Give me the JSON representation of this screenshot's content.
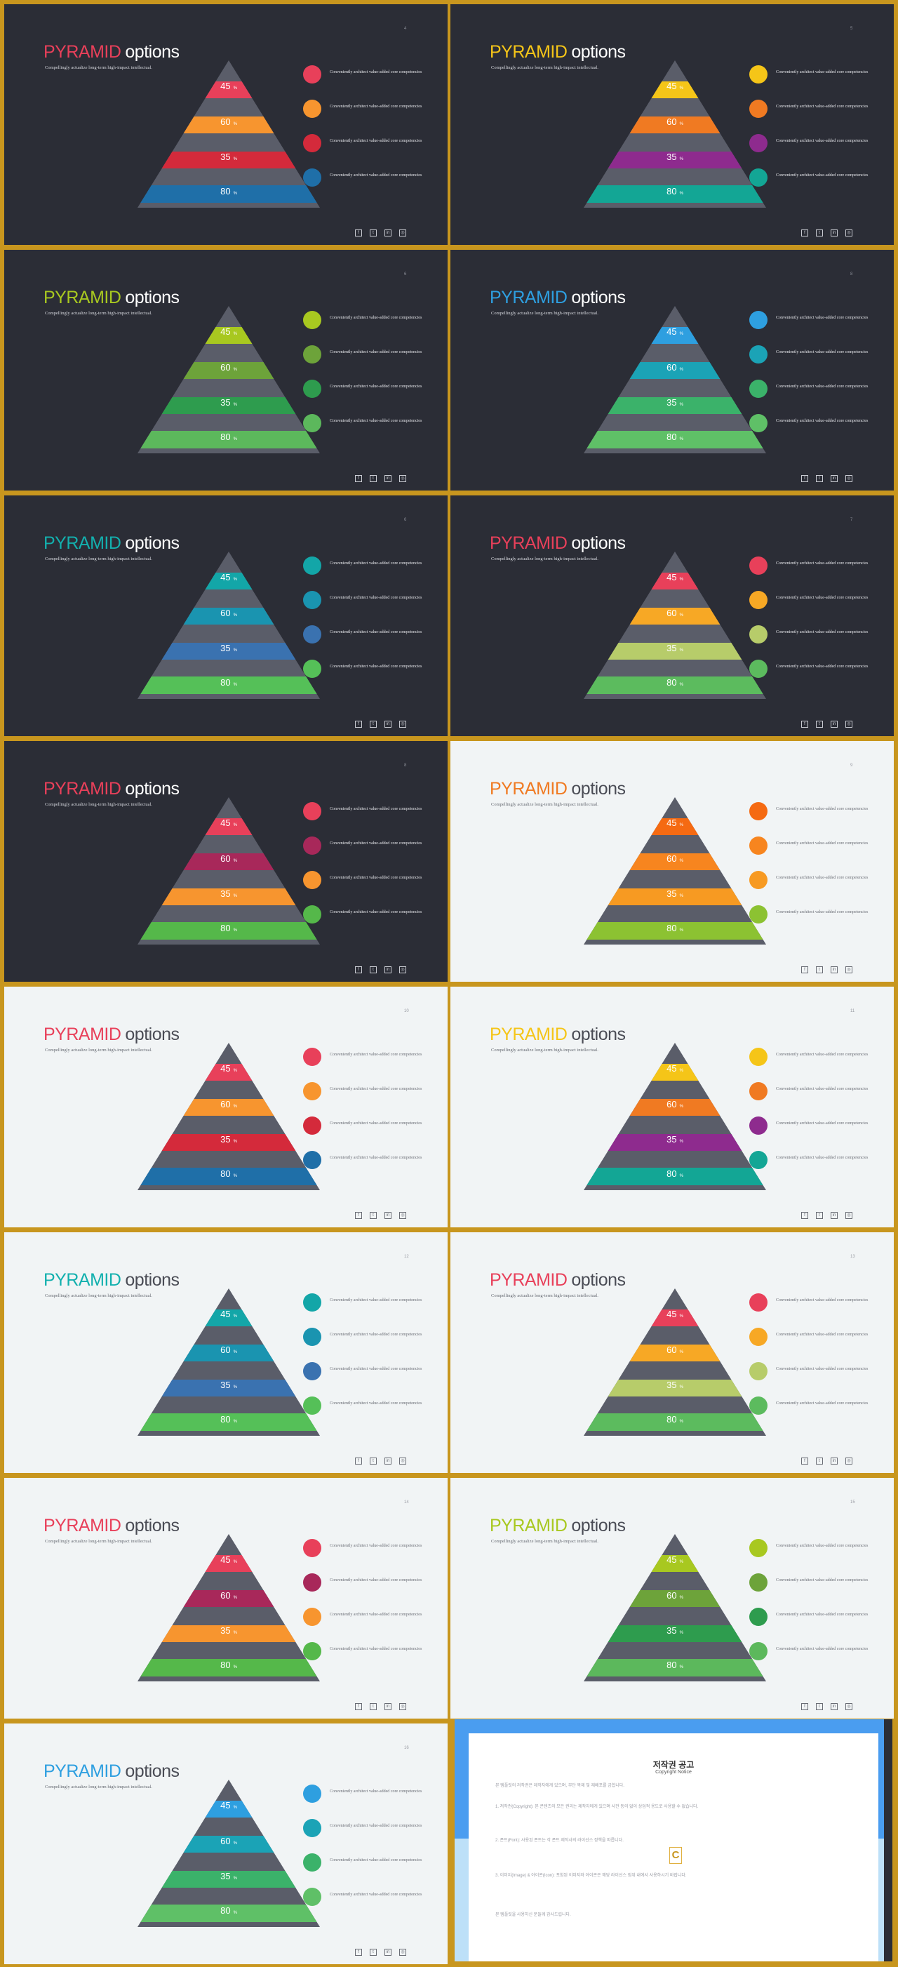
{
  "common": {
    "title_word1": "PYRAMID",
    "title_word2": "options",
    "subtitle": "Compellingly actualize long-term high-impact intellectual.",
    "legend_text": "Conveniently architect value-added core competencies",
    "values": [
      "45",
      "60",
      "35",
      "80"
    ],
    "value_suffix": "%",
    "social": [
      "f",
      "t",
      "in",
      "◎"
    ]
  },
  "slides": [
    {
      "theme": "dark",
      "page": "4",
      "title_color": "#e8405a",
      "values": [
        "45",
        "60",
        "35",
        "80"
      ],
      "colors": [
        "#e8405a",
        "#f7952f",
        "#d42a3b",
        "#1f6fa8"
      ]
    },
    {
      "theme": "dark",
      "page": "5",
      "title_color": "#f5c518",
      "values": [
        "45",
        "60",
        "35",
        "80"
      ],
      "colors": [
        "#f5c518",
        "#f07a22",
        "#8e2b8e",
        "#13a695"
      ]
    },
    {
      "theme": "dark",
      "page": "6",
      "title_color": "#a8c820",
      "values": [
        "45",
        "60",
        "35",
        "80"
      ],
      "colors": [
        "#a8c820",
        "#6da33a",
        "#2e9c4e",
        "#5cb85c"
      ]
    },
    {
      "theme": "dark",
      "page": "8",
      "title_color": "#2e9fe0",
      "values": [
        "45",
        "60",
        "35",
        "80"
      ],
      "colors": [
        "#2e9fe0",
        "#1ba3b6",
        "#3bb26a",
        "#5fc067"
      ]
    },
    {
      "theme": "dark",
      "page": "6",
      "title_color": "#13b0ae",
      "values": [
        "45",
        "60",
        "35",
        "80"
      ],
      "colors": [
        "#13a6a8",
        "#1a94b0",
        "#3a72b0",
        "#55c058"
      ]
    },
    {
      "theme": "dark",
      "page": "7",
      "title_color": "#e8405a",
      "values": [
        "45",
        "60",
        "35",
        "80"
      ],
      "colors": [
        "#e8405a",
        "#f7a825",
        "#b7cc6a",
        "#5cbb5e"
      ]
    },
    {
      "theme": "dark",
      "page": "8",
      "title_color": "#e8405a",
      "values": [
        "45",
        "60",
        "35",
        "80"
      ],
      "colors": [
        "#e8405a",
        "#a8285a",
        "#f7952f",
        "#55b84a"
      ]
    },
    {
      "theme": "light",
      "page": "9",
      "title_color": "#f07a22",
      "values": [
        "45",
        "60",
        "35",
        "80"
      ],
      "colors": [
        "#f56a12",
        "#f7851f",
        "#f79a22",
        "#8cc232"
      ]
    },
    {
      "theme": "light",
      "page": "10",
      "title_color": "#e8405a",
      "values": [
        "45",
        "60",
        "35",
        "80"
      ],
      "colors": [
        "#e8405a",
        "#f7952f",
        "#d42a3b",
        "#1f6fa8"
      ]
    },
    {
      "theme": "light",
      "page": "11",
      "title_color": "#f5c518",
      "values": [
        "45",
        "60",
        "35",
        "80"
      ],
      "colors": [
        "#f5c518",
        "#f07a22",
        "#8e2b8e",
        "#13a695"
      ]
    },
    {
      "theme": "light",
      "page": "12",
      "title_color": "#13b0ae",
      "values": [
        "45",
        "60",
        "35",
        "80"
      ],
      "colors": [
        "#13a6a8",
        "#1a94b0",
        "#3a72b0",
        "#55c058"
      ]
    },
    {
      "theme": "light",
      "page": "13",
      "title_color": "#e8405a",
      "values": [
        "45",
        "60",
        "35",
        "80"
      ],
      "colors": [
        "#e8405a",
        "#f7a825",
        "#b7cc6a",
        "#5cbb5e"
      ]
    },
    {
      "theme": "light",
      "page": "14",
      "title_color": "#e8405a",
      "values": [
        "45",
        "60",
        "35",
        "80"
      ],
      "colors": [
        "#e8405a",
        "#a8285a",
        "#f7952f",
        "#55b84a"
      ]
    },
    {
      "theme": "light",
      "page": "15",
      "title_color": "#a8c820",
      "values": [
        "45",
        "60",
        "35",
        "80"
      ],
      "colors": [
        "#a8c820",
        "#6da33a",
        "#2e9c4e",
        "#5cb85c"
      ]
    },
    {
      "theme": "light",
      "page": "16",
      "title_color": "#2e9fe0",
      "values": [
        "45",
        "60",
        "35",
        "80"
      ],
      "colors": [
        "#2e9fe0",
        "#1ba3b6",
        "#3bb26a",
        "#5fc067"
      ]
    }
  ],
  "copyright": {
    "title": "저작권 공고",
    "subtitle": "Copyright Notice",
    "para1": "본 템플릿의 저작권은 제작자에게 있으며, 무단 복제 및 재배포를 금합니다.",
    "para2": "1. 저작권(Copyright): 본 콘텐츠의 모든 권리는 제작자에게 있으며 사전 동의 없이 상업적 용도로 사용할 수 없습니다.",
    "para3": "2. 폰트(Font): 사용된 폰트는 각 폰트 제작사의 라이선스 정책을 따릅니다.",
    "para4": "3. 이미지(Image) & 아이콘(Icon): 포함된 이미지와 아이콘은 해당 라이선스 범위 내에서 사용하시기 바랍니다.",
    "para5": "본 템플릿을 사용하신 분들께 감사드립니다.",
    "logo": "C"
  },
  "accent": "#c8961e"
}
